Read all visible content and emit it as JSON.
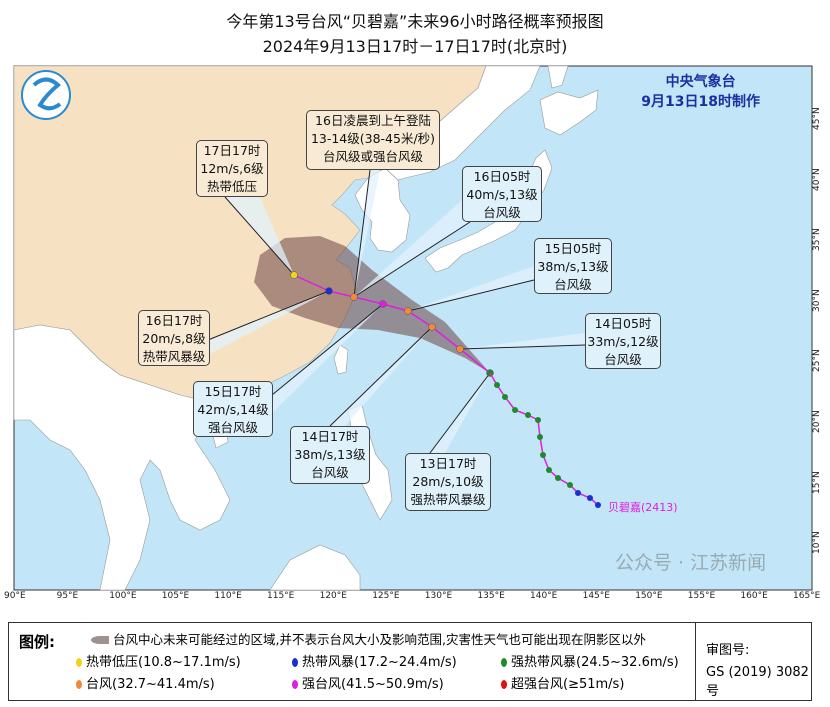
{
  "title": {
    "line1": "今年第13号台风“贝碧嘉”未来96小时路径概率预报图",
    "line2": "2024年9月13日17时－17日17时(北京时)"
  },
  "agency": {
    "name": "中央气象台",
    "issued": "9月13日18时制作"
  },
  "storm_label": "贝碧嘉(2413)",
  "callouts": [
    {
      "lines": [
        "17日17时",
        "12m/s,6级",
        "热带低压"
      ]
    },
    {
      "lines": [
        "16日凌晨到上午登陆",
        "13-14级(38-45米/秒)",
        "台风级或强台风级"
      ]
    },
    {
      "lines": [
        "16日05时",
        "40m/s,13级",
        "台风级"
      ]
    },
    {
      "lines": [
        "15日05时",
        "38m/s,13级",
        "台风级"
      ]
    },
    {
      "lines": [
        "14日05时",
        "33m/s,12级",
        "台风级"
      ]
    },
    {
      "lines": [
        "16日17时",
        "20m/s,8级",
        "热带风暴级"
      ]
    },
    {
      "lines": [
        "15日17时",
        "42m/s,14级",
        "强台风级"
      ]
    },
    {
      "lines": [
        "14日17时",
        "38m/s,13级",
        "台风级"
      ]
    },
    {
      "lines": [
        "13日17时",
        "28m/s,10级",
        "强热带风暴级"
      ]
    }
  ],
  "forecast_track": [
    {
      "time": "13日17时",
      "category": "strong_tropical_storm"
    },
    {
      "time": "14日05时",
      "category": "typhoon"
    },
    {
      "time": "14日17时",
      "category": "typhoon"
    },
    {
      "time": "15日05时",
      "category": "typhoon"
    },
    {
      "time": "15日17时",
      "category": "severe_typhoon"
    },
    {
      "time": "16日05时",
      "category": "typhoon"
    },
    {
      "time": "16日17时",
      "category": "tropical_storm"
    },
    {
      "time": "17日17时",
      "category": "tropical_depression"
    }
  ],
  "axes": {
    "lon_labels": [
      "90°E",
      "95°E",
      "100°E",
      "105°E",
      "110°E",
      "115°E",
      "120°E",
      "125°E",
      "130°E",
      "135°E",
      "140°E",
      "145°E",
      "150°E",
      "155°E",
      "160°E",
      "165°E"
    ],
    "lat_labels": [
      "45°N",
      "40°N",
      "35°N",
      "30°N",
      "25°N",
      "20°N",
      "15°N",
      "10°N"
    ]
  },
  "colors": {
    "tropical_depression": "#f2d21a",
    "tropical_storm": "#1a2fd0",
    "strong_tropical_storm": "#1f8a2a",
    "typhoon": "#f08a3a",
    "severe_typhoon": "#e01ee0",
    "super_typhoon": "#e01010",
    "track_line": "#e01ee0",
    "sea": "#c2e6f7",
    "china_land": "#f6e1c3",
    "cone": "#7a5a5a"
  },
  "legend": {
    "heading": "图例:",
    "cone_desc": "台风中心未来可能经过的区域,并不表示台风大小及影响范围,灾害性天气也可能出现在阴影区以外",
    "items": [
      {
        "label": "热带低压(10.8~17.1m/s)",
        "key": "tropical_depression"
      },
      {
        "label": "热带风暴(17.2~24.4m/s)",
        "key": "tropical_storm"
      },
      {
        "label": "强热带风暴(24.5~32.6m/s)",
        "key": "strong_tropical_storm"
      },
      {
        "label": "台风(32.7~41.4m/s)",
        "key": "typhoon"
      },
      {
        "label": "强台风(41.5~50.9m/s)",
        "key": "severe_typhoon"
      },
      {
        "label": "超强台风(≥51m/s)",
        "key": "super_typhoon"
      }
    ],
    "review_label": "审图号:",
    "review_no": "GS (2019) 3082号"
  },
  "watermark": "公众号 · 江苏新闻"
}
